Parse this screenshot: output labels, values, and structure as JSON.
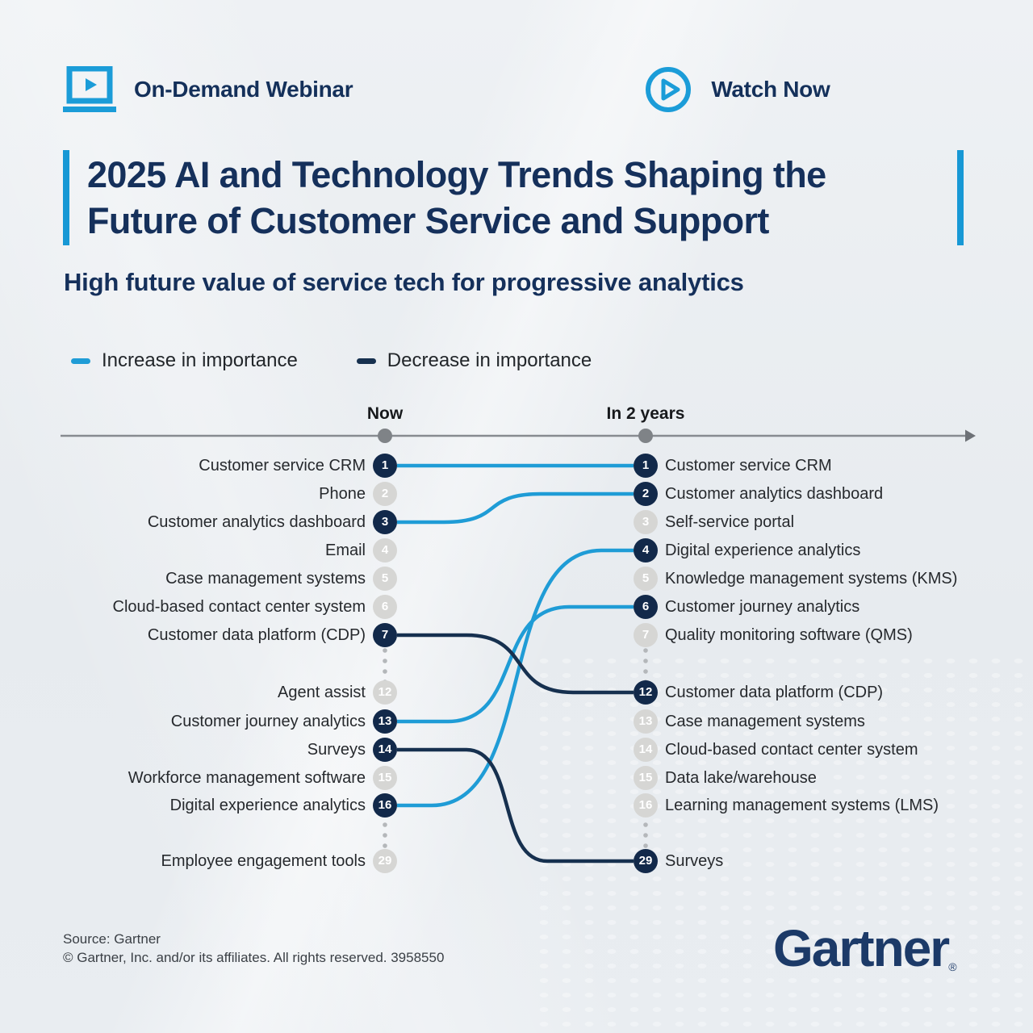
{
  "header": {
    "webinar_label": "On-Demand Webinar",
    "watch_label": "Watch Now"
  },
  "title": {
    "line1": "2025 AI and Technology Trends Shaping the",
    "line2": "Future of Customer Service and Support"
  },
  "subtitle": "High future value of service tech for progressive analytics",
  "legend": {
    "increase": {
      "label": "Increase in importance",
      "color": "#1f9cd6"
    },
    "decrease": {
      "label": "Decrease in importance",
      "color": "#16304f"
    }
  },
  "chart_data": {
    "type": "slope",
    "columns": [
      "Now",
      "In 2 years"
    ],
    "now_ranking": [
      {
        "rank": 1,
        "label": "Customer service CRM",
        "highlighted": true
      },
      {
        "rank": 2,
        "label": "Phone",
        "highlighted": false
      },
      {
        "rank": 3,
        "label": "Customer analytics dashboard",
        "highlighted": true
      },
      {
        "rank": 4,
        "label": "Email",
        "highlighted": false
      },
      {
        "rank": 5,
        "label": "Case management systems",
        "highlighted": false
      },
      {
        "rank": 6,
        "label": "Cloud-based contact center system",
        "highlighted": false
      },
      {
        "rank": 7,
        "label": "Customer data platform (CDP)",
        "highlighted": true
      },
      {
        "rank": 12,
        "label": "Agent assist",
        "highlighted": false
      },
      {
        "rank": 13,
        "label": "Customer journey analytics",
        "highlighted": true
      },
      {
        "rank": 14,
        "label": "Surveys",
        "highlighted": true
      },
      {
        "rank": 15,
        "label": "Workforce management software",
        "highlighted": false
      },
      {
        "rank": 16,
        "label": "Digital experience analytics",
        "highlighted": true
      },
      {
        "rank": 29,
        "label": "Employee engagement tools",
        "highlighted": false
      }
    ],
    "future_ranking": [
      {
        "rank": 1,
        "label": "Customer service CRM",
        "highlighted": true
      },
      {
        "rank": 2,
        "label": "Customer analytics dashboard",
        "highlighted": true
      },
      {
        "rank": 3,
        "label": "Self-service portal",
        "highlighted": false
      },
      {
        "rank": 4,
        "label": "Digital experience analytics",
        "highlighted": true
      },
      {
        "rank": 5,
        "label": "Knowledge management systems (KMS)",
        "highlighted": false
      },
      {
        "rank": 6,
        "label": "Customer journey analytics",
        "highlighted": true
      },
      {
        "rank": 7,
        "label": "Quality monitoring software (QMS)",
        "highlighted": false
      },
      {
        "rank": 12,
        "label": "Customer data platform (CDP)",
        "highlighted": true
      },
      {
        "rank": 13,
        "label": "Case management systems",
        "highlighted": false
      },
      {
        "rank": 14,
        "label": "Cloud-based contact center system",
        "highlighted": false
      },
      {
        "rank": 15,
        "label": "Data lake/warehouse",
        "highlighted": false
      },
      {
        "rank": 16,
        "label": "Learning management systems (LMS)",
        "highlighted": false
      },
      {
        "rank": 29,
        "label": "Surveys",
        "highlighted": true
      }
    ],
    "connections": [
      {
        "from_rank": 1,
        "to_rank": 1,
        "direction": "increase"
      },
      {
        "from_rank": 3,
        "to_rank": 2,
        "direction": "increase"
      },
      {
        "from_rank": 13,
        "to_rank": 6,
        "direction": "increase"
      },
      {
        "from_rank": 16,
        "to_rank": 4,
        "direction": "increase"
      },
      {
        "from_rank": 7,
        "to_rank": 12,
        "direction": "decrease"
      },
      {
        "from_rank": 14,
        "to_rank": 29,
        "direction": "decrease"
      }
    ],
    "colors": {
      "increase_line": "#1f9cd6",
      "decrease_line": "#16304f",
      "highlight_badge": "#12294a",
      "dim_badge": "#d6d6d4"
    }
  },
  "footer": {
    "source": "Source: Gartner",
    "copyright": "© Gartner, Inc. and/or its affiliates. All rights reserved. 3958550",
    "logo_text": "Gartner",
    "logo_reg": "®"
  }
}
